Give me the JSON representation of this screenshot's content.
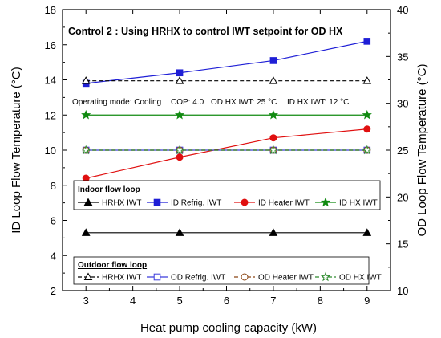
{
  "chart_data": {
    "type": "line",
    "title": "Control 2 : Using HRHX to control IWT setpoint for OD HX",
    "xlabel": "Heat pump cooling capacity (kW)",
    "ylabel": "ID Loop Flow Temperature (°C)",
    "y2label": "OD Loop Flow Temperature (°C)",
    "xlim": [
      2.5,
      9.5
    ],
    "ylim": [
      2,
      18
    ],
    "y2lim": [
      10,
      40
    ],
    "xticks": [
      "3",
      "4",
      "5",
      "6",
      "7",
      "8",
      "9"
    ],
    "yticks": [
      "2",
      "4",
      "6",
      "8",
      "10",
      "12",
      "14",
      "16",
      "18"
    ],
    "y2ticks": [
      "10",
      "15",
      "20",
      "25",
      "30",
      "35",
      "40"
    ],
    "x": [
      3,
      5,
      7,
      9
    ],
    "annotation": {
      "mode": "Operating mode: Cooling",
      "cop": "COP: 4.0",
      "od_iwt": "OD HX IWT: 25 °C",
      "id_iwt": "ID HX IWT: 12 °C"
    },
    "legends": [
      {
        "title": "Indoor flow loop",
        "entries": [
          "HRHX IWT",
          "ID Refrig. IWT",
          "ID Heater IWT",
          "ID HX IWT"
        ]
      },
      {
        "title": "Outdoor flow loop",
        "entries": [
          "HRHX IWT",
          "OD Refrig. IWT",
          "OD Heater IWT",
          "OD HX IWT"
        ]
      }
    ],
    "series": [
      {
        "name": "HRHX IWT",
        "loop": "Indoor",
        "axis": "left",
        "values": [
          5.3,
          5.3,
          5.3,
          5.3
        ],
        "color": "#000000",
        "marker": "triangle-filled",
        "dash": "solid"
      },
      {
        "name": "ID Refrig. IWT",
        "loop": "Indoor",
        "axis": "left",
        "values": [
          13.8,
          14.4,
          15.1,
          16.2
        ],
        "color": "#1f1fd6",
        "marker": "square-filled",
        "dash": "solid"
      },
      {
        "name": "ID Heater IWT",
        "loop": "Indoor",
        "axis": "left",
        "values": [
          8.4,
          9.6,
          10.7,
          11.2
        ],
        "color": "#e01010",
        "marker": "circle-filled",
        "dash": "solid"
      },
      {
        "name": "ID HX IWT",
        "loop": "Indoor",
        "axis": "left",
        "values": [
          12,
          12,
          12,
          12
        ],
        "color": "#118a11",
        "marker": "star-filled",
        "dash": "solid"
      },
      {
        "name": "HRHX IWT",
        "loop": "Outdoor",
        "axis": "right",
        "values": [
          32.4,
          32.4,
          32.4,
          32.4
        ],
        "color": "#000000",
        "marker": "triangle-open",
        "dash": "dashed"
      },
      {
        "name": "OD Refrig. IWT",
        "loop": "Outdoor",
        "axis": "right",
        "values": [
          25,
          25,
          25,
          25
        ],
        "color": "#3b3bdc",
        "marker": "square-open",
        "dash": "solid"
      },
      {
        "name": "OD Heater IWT",
        "loop": "Outdoor",
        "axis": "right",
        "values": [
          25,
          25,
          25,
          25
        ],
        "color": "#8b4513",
        "marker": "circle-open",
        "dash": "dashed"
      },
      {
        "name": "OD HX IWT",
        "loop": "Outdoor",
        "axis": "right",
        "values": [
          25,
          25,
          25,
          25
        ],
        "color": "#2e8b2e",
        "marker": "star-open",
        "dash": "dashed"
      }
    ]
  }
}
